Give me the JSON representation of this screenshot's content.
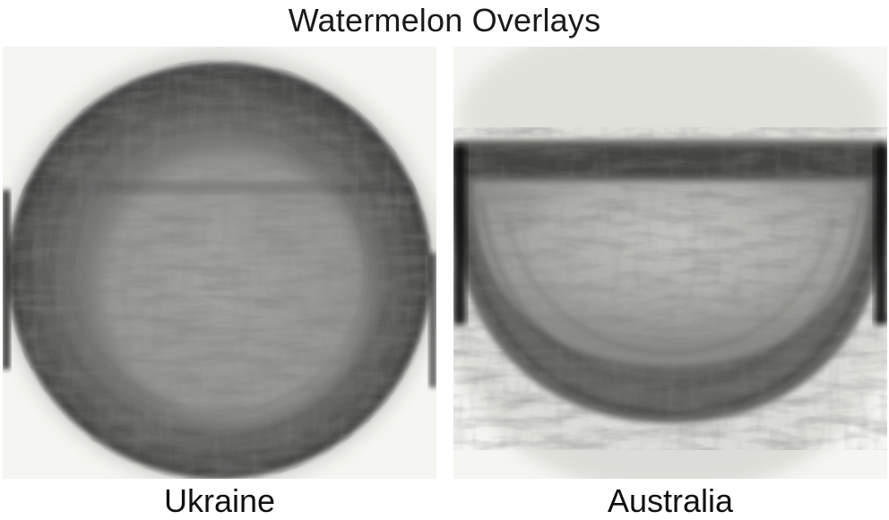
{
  "title": "Watermelon Overlays",
  "panels": [
    {
      "label": "Ukraine"
    },
    {
      "label": "Australia"
    }
  ],
  "colors": {
    "background": "#ffffff",
    "paper": "#f7f7f3",
    "ink_dark": "#2e2e2e",
    "ink_mid": "#6f6f6f",
    "ink_light": "#bdbdb7"
  }
}
